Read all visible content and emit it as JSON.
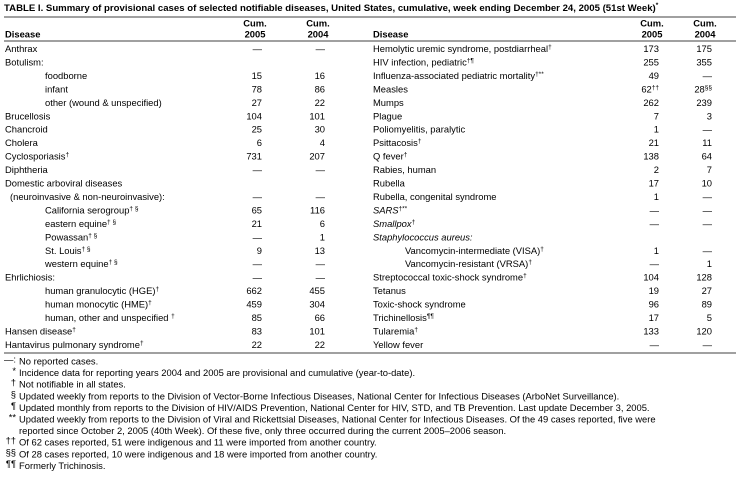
{
  "title": {
    "text": "TABLE I. Summary of provisional cases of selected notifiable diseases, United States, cumulative, week ending December 24, 2005 (51st Week)",
    "note": "*"
  },
  "header": {
    "disease": "Disease",
    "cum_2005": [
      "Cum.",
      "2005"
    ],
    "cum_2004": [
      "Cum.",
      "2004"
    ]
  },
  "left_rows": [
    {
      "disease": "Anthrax",
      "cum_2005": "—",
      "cum_2004": "—"
    },
    {
      "disease": "Botulism:"
    },
    {
      "disease": "foodborne",
      "cum_2005": 15,
      "cum_2004": 16
    },
    {
      "disease": "infant",
      "cum_2005": 78,
      "cum_2004": 86
    },
    {
      "disease": "other (wound & unspecified)",
      "cum_2005": 27,
      "cum_2004": 22
    },
    {
      "disease": "Brucellosis",
      "cum_2005": 104,
      "cum_2004": 101
    },
    {
      "disease": "Chancroid",
      "cum_2005": 25,
      "cum_2004": 30
    },
    {
      "disease": "Cholera",
      "cum_2005": 6,
      "cum_2004": 4
    },
    {
      "disease": "Cyclosporiasis",
      "disease_note": "†",
      "cum_2005": 731,
      "cum_2004": 207
    },
    {
      "disease": "Diphtheria",
      "cum_2005": "—",
      "cum_2004": "—"
    },
    {
      "disease": "Domestic arboviral diseases"
    },
    {
      "disease": "(neuroinvasive & non-neuroinvasive):",
      "cum_2005": "—",
      "cum_2004": "—"
    },
    {
      "disease": "California serogroup",
      "disease_note": "† §",
      "cum_2005": 65,
      "cum_2004": 116
    },
    {
      "disease": "eastern equine",
      "disease_note": "† §",
      "cum_2005": 21,
      "cum_2004": 6
    },
    {
      "disease": "Powassan",
      "disease_note": "† §",
      "cum_2005": "—",
      "cum_2004": 1
    },
    {
      "disease": "St. Louis",
      "disease_note": "† §",
      "cum_2005": 9,
      "cum_2004": 13
    },
    {
      "disease": "western equine",
      "disease_note": "† §",
      "cum_2005": "—",
      "cum_2004": "—"
    },
    {
      "disease": "Ehrlichiosis:",
      "cum_2005": "—",
      "cum_2004": "—"
    },
    {
      "disease": "human granulocytic (HGE)",
      "disease_note": "†",
      "cum_2005": 662,
      "cum_2004": 455
    },
    {
      "disease": "human monocytic (HME)",
      "disease_note": "†",
      "cum_2005": 459,
      "cum_2004": 304
    },
    {
      "disease": "human, other and unspecified ",
      "disease_note": "†",
      "cum_2005": 85,
      "cum_2004": 66
    },
    {
      "disease": "Hansen disease",
      "disease_note": "†",
      "cum_2005": 83,
      "cum_2004": 101
    },
    {
      "disease": "Hantavirus pulmonary syndrome",
      "disease_note": "†",
      "cum_2005": 22,
      "cum_2004": 22
    }
  ],
  "right_rows": [
    {
      "disease": "Hemolytic uremic syndrome, postdiarrheal",
      "disease_note": "†",
      "cum_2005": 173,
      "cum_2004": 175
    },
    {
      "disease": "HIV infection, pediatric",
      "disease_note": "†¶",
      "cum_2005": 255,
      "cum_2004": 355
    },
    {
      "disease": "Influenza-associated pediatric mortality",
      "disease_note": "†**",
      "cum_2005": 49,
      "cum_2004": "—"
    },
    {
      "disease": "Measles",
      "cum_2005": 62,
      "cum_2005_note": "††",
      "cum_2004": 28,
      "cum_2004_note": "§§"
    },
    {
      "disease": "Mumps",
      "cum_2005": 262,
      "cum_2004": 239
    },
    {
      "disease": "Plague",
      "cum_2005": 7,
      "cum_2004": 3
    },
    {
      "disease": "Poliomyelitis, paralytic",
      "cum_2005": 1,
      "cum_2004": "—"
    },
    {
      "disease": "Psittacosis",
      "disease_note": "†",
      "cum_2005": 21,
      "cum_2004": 11
    },
    {
      "disease": "Q fever",
      "disease_note": "†",
      "cum_2005": 138,
      "cum_2004": 64
    },
    {
      "disease": "Rabies, human",
      "cum_2005": 2,
      "cum_2004": 7
    },
    {
      "disease": "Rubella",
      "cum_2005": 17,
      "cum_2004": 10
    },
    {
      "disease": "Rubella, congenital syndrome",
      "cum_2005": 1,
      "cum_2004": "—"
    },
    {
      "disease": "SARS",
      "disease_note": "†**",
      "cum_2005": "—",
      "cum_2004": "—"
    },
    {
      "disease": "Smallpox",
      "disease_note": "†",
      "cum_2005": "—",
      "cum_2004": "—"
    },
    {
      "disease": "Staphylococcus aureus:"
    },
    {
      "disease": "Vancomycin-intermediate (VISA)",
      "disease_note": "†",
      "cum_2005": 1,
      "cum_2004": "—"
    },
    {
      "disease": "Vancomycin-resistant (VRSA)",
      "disease_note": "†",
      "cum_2005": "—",
      "cum_2004": 1
    },
    {
      "disease": "Streptococcal toxic-shock syndrome",
      "disease_note": "†",
      "cum_2005": 104,
      "cum_2004": 128
    },
    {
      "disease": "Tetanus",
      "cum_2005": 19,
      "cum_2004": 27
    },
    {
      "disease": "Toxic-shock syndrome",
      "cum_2005": 96,
      "cum_2004": 89
    },
    {
      "disease": "Trichinellosis",
      "disease_note": "¶¶",
      "cum_2005": 17,
      "cum_2004": 5
    },
    {
      "disease": "Tularemia",
      "disease_note": "†",
      "cum_2005": 133,
      "cum_2004": 120
    },
    {
      "disease": "Yellow fever",
      "cum_2005": "—",
      "cum_2004": "—"
    }
  ],
  "footnotes": [
    {
      "mark": "—:",
      "lines": [
        "No reported cases."
      ]
    },
    {
      "mark": "*",
      "lines": [
        "Incidence data for reporting years 2004 and 2005 are provisional and cumulative (year-to-date)."
      ]
    },
    {
      "mark": "†",
      "lines": [
        "Not notifiable in all states."
      ]
    },
    {
      "mark": "§",
      "lines": [
        "Updated weekly from reports to the Division of Vector-Borne Infectious Diseases, National Center for Infectious Diseases (ArboNet Surveillance)."
      ]
    },
    {
      "mark": "¶",
      "lines": [
        "Updated monthly from reports to the Division of HIV/AIDS Prevention, National Center for HIV, STD, and TB Prevention. Last update December 3, 2005."
      ]
    },
    {
      "mark": "**",
      "lines": [
        "Updated weekly from reports to the Division of Viral and Rickettsial Diseases, National Center for Infectious Diseases. Of the 49 cases reported, five were",
        "reported since October 2, 2005 (40th Week). Of these five, only three occurred during the current 2005–2006 season."
      ]
    },
    {
      "mark": "††",
      "lines": [
        "Of 62 cases reported, 51 were indigenous and 11 were imported from another country."
      ]
    },
    {
      "mark": "§§",
      "lines": [
        "Of 28 cases reported, 10 were indigenous and 18 were imported from another country."
      ]
    },
    {
      "mark": "¶¶",
      "lines": [
        "Formerly Trichinosis."
      ]
    }
  ]
}
